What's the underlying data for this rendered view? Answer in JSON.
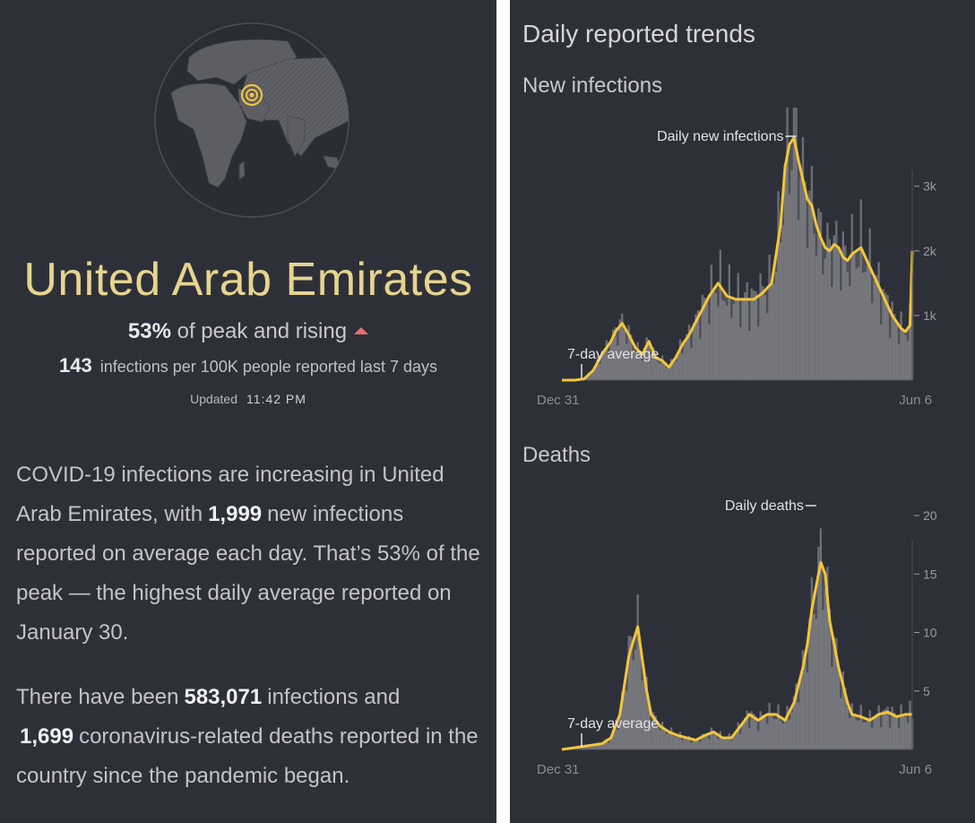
{
  "summary": {
    "country": "United Arab Emirates",
    "peak_pct": "53%",
    "peak_text": "of peak and rising",
    "rate_value": "143",
    "rate_text": "infections per 100K people reported last 7 days",
    "updated_label": "Updated",
    "updated_time": "11:42 PM"
  },
  "paragraph1": {
    "before": "COVID-19 infections are increasing in United Arab Emirates, with",
    "value": "1,999",
    "after": "new infections reported on average each day. That’s 53% of the peak — the highest daily average reported on January 30."
  },
  "paragraph2": {
    "before": "There have been",
    "value1": "583,071",
    "middle": "infections and",
    "value2": "1,699",
    "after": "coronavirus-related deaths reported in the country since the pandemic began."
  },
  "trends": {
    "title": "Daily reported trends"
  },
  "colors": {
    "background": "#2e3039",
    "accent": "#f2c63a",
    "bars": "#6d6e73",
    "title": "#e6d48e",
    "rising": "#e8706a"
  },
  "icons": {
    "globe": "globe-icon",
    "location": "location-target-icon",
    "rising": "triangle-up-icon"
  },
  "chart_data": [
    {
      "type": "area",
      "title": "New infections",
      "series_label": "Daily new infections",
      "average_label": "7-day average",
      "x_start": "Dec 31",
      "x_end": "Jun 6",
      "ylim": [
        0,
        3800
      ],
      "yticks": [
        1000,
        2000,
        3000
      ],
      "ytick_labels": [
        "1k",
        "2k",
        "3k"
      ],
      "days": [
        0,
        6,
        10,
        14,
        18,
        22,
        24,
        27,
        30,
        33,
        36,
        39,
        42,
        45,
        48,
        51,
        54,
        57,
        60,
        63,
        66,
        70,
        74,
        78,
        82,
        86,
        90,
        94,
        98,
        100,
        102,
        104,
        106,
        108,
        110,
        112,
        114,
        116,
        118,
        120,
        122,
        124,
        126,
        128,
        130,
        132,
        134,
        136,
        138,
        140,
        142,
        144,
        146,
        148,
        150,
        152,
        154,
        156,
        157
      ],
      "values": [
        0,
        0,
        20,
        150,
        400,
        600,
        750,
        880,
        700,
        500,
        400,
        600,
        350,
        300,
        200,
        350,
        550,
        700,
        900,
        1100,
        1300,
        1500,
        1300,
        1250,
        1250,
        1250,
        1350,
        1500,
        2400,
        3300,
        3650,
        3750,
        3400,
        3100,
        2800,
        2700,
        2400,
        2200,
        2050,
        2000,
        2100,
        2050,
        1900,
        1850,
        1950,
        2000,
        2050,
        1900,
        1750,
        1600,
        1450,
        1300,
        1150,
        1000,
        900,
        800,
        750,
        850,
        2000
      ]
    },
    {
      "type": "area",
      "title": "Deaths",
      "series_label": "Daily deaths",
      "average_label": "7-day average",
      "x_start": "Dec 31",
      "x_end": "Jun 6",
      "ylim": [
        0,
        21
      ],
      "yticks": [
        5,
        10,
        15,
        20
      ],
      "ytick_labels": [
        "5",
        "10",
        "15",
        "20"
      ],
      "days": [
        0,
        18,
        22,
        26,
        30,
        34,
        38,
        40,
        44,
        48,
        52,
        56,
        60,
        64,
        68,
        72,
        76,
        80,
        84,
        88,
        92,
        96,
        100,
        104,
        108,
        110,
        112,
        114,
        116,
        118,
        120,
        124,
        128,
        130,
        134,
        138,
        142,
        146,
        150,
        154,
        157
      ],
      "values": [
        0,
        0.5,
        1,
        3,
        8,
        10.5,
        5,
        3,
        2,
        1.5,
        1.2,
        1,
        0.8,
        1.2,
        1.5,
        1,
        1,
        2,
        3,
        2.5,
        3,
        3,
        2.5,
        4,
        7,
        9,
        12,
        14,
        16,
        15,
        11,
        7,
        4,
        3,
        2.8,
        2.5,
        3,
        3.2,
        2.8,
        3,
        3
      ]
    }
  ]
}
